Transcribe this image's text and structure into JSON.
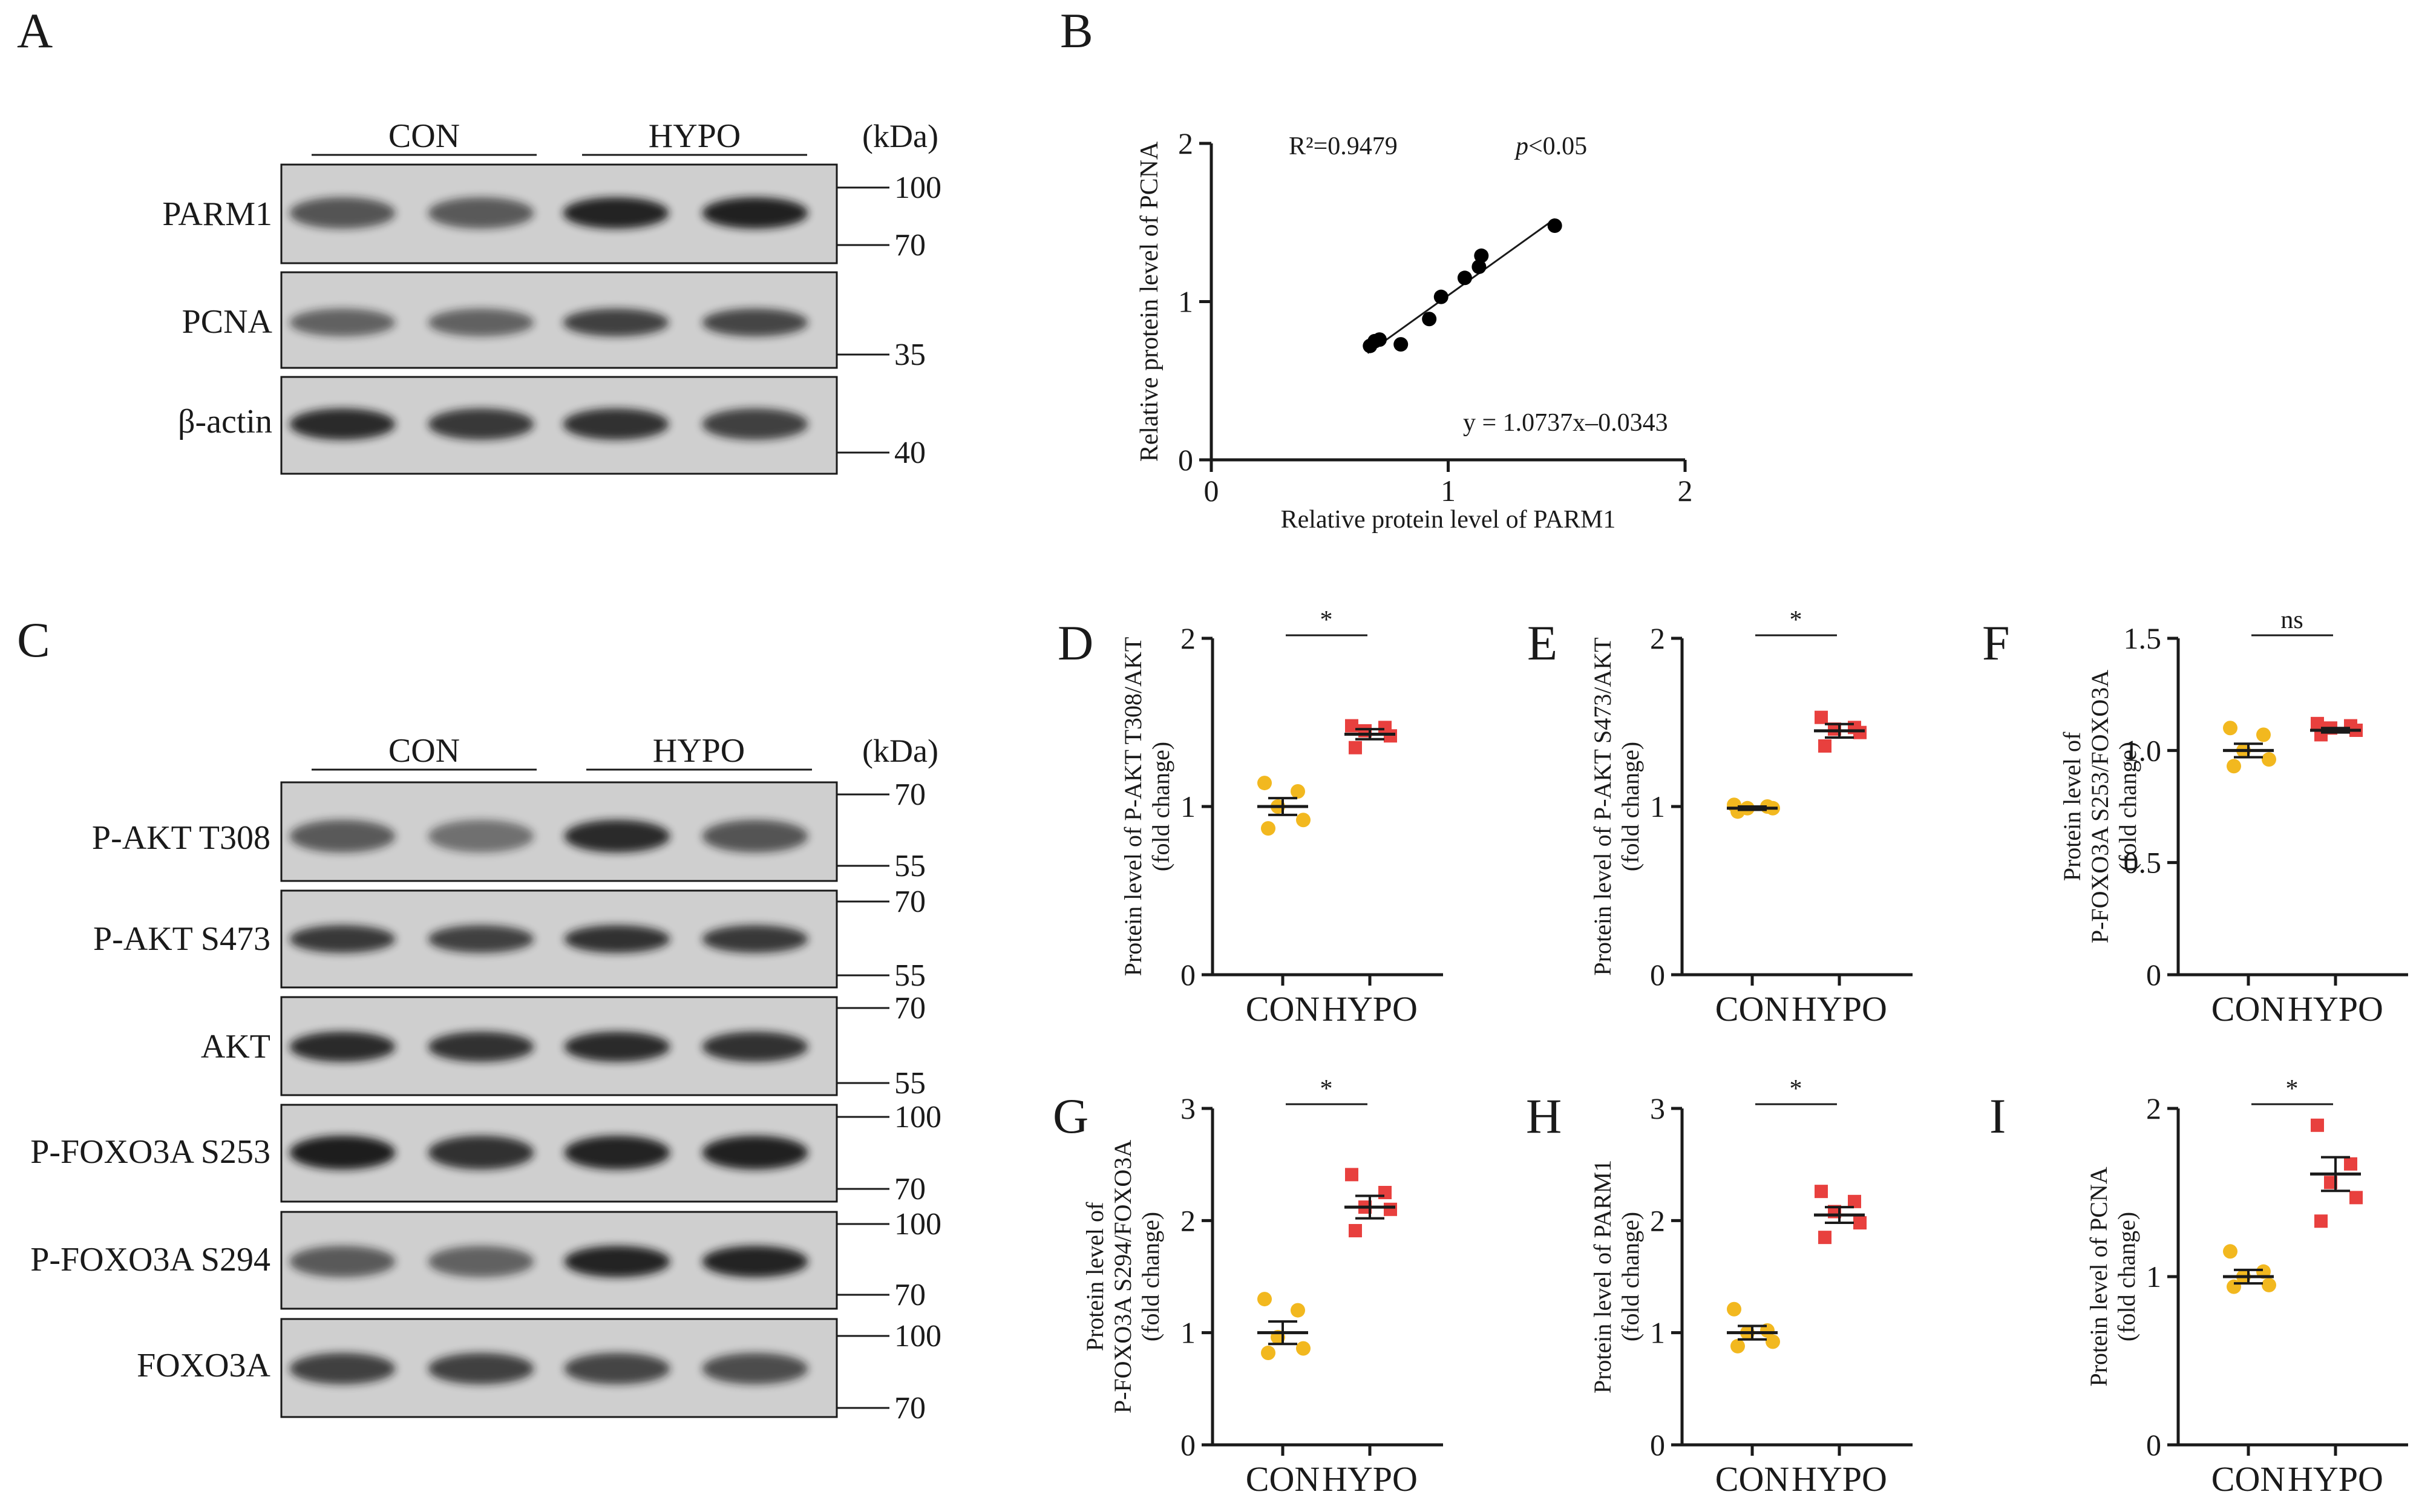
{
  "panel_letters": {
    "A": "A",
    "B": "B",
    "C": "C",
    "D": "D",
    "E": "E",
    "F": "F",
    "G": "G",
    "H": "H",
    "I": "I"
  },
  "blot_A": {
    "groups": [
      "CON",
      "HYPO"
    ],
    "unit": "(kDa)",
    "rows": [
      {
        "label": "PARM1",
        "markers": [
          "100",
          "70"
        ],
        "bands": [
          0.55,
          0.5,
          0.9,
          0.92
        ]
      },
      {
        "label": "PCNA",
        "markers": [
          "35"
        ],
        "bands": [
          0.45,
          0.45,
          0.7,
          0.65
        ]
      },
      {
        "label": "β-actin",
        "markers": [
          "40"
        ],
        "bands": [
          0.85,
          0.75,
          0.8,
          0.7
        ]
      }
    ]
  },
  "blot_C": {
    "groups": [
      "CON",
      "HYPO"
    ],
    "unit": "(kDa)",
    "rows": [
      {
        "label": "P-AKT T308",
        "markers": [
          "70",
          "55"
        ],
        "bands": [
          0.5,
          0.35,
          0.85,
          0.55
        ]
      },
      {
        "label": "P-AKT S473",
        "markers": [
          "70",
          "55"
        ],
        "bands": [
          0.75,
          0.7,
          0.8,
          0.75
        ]
      },
      {
        "label": "AKT",
        "markers": [
          "70",
          "55"
        ],
        "bands": [
          0.85,
          0.8,
          0.85,
          0.8
        ]
      },
      {
        "label": "P-FOXO3A S253",
        "markers": [
          "100",
          "70"
        ],
        "bands": [
          0.95,
          0.8,
          0.9,
          0.92
        ]
      },
      {
        "label": "P-FOXO3A S294",
        "markers": [
          "100",
          "70"
        ],
        "bands": [
          0.5,
          0.45,
          0.9,
          0.9
        ]
      },
      {
        "label": "FOXO3A",
        "markers": [
          "100",
          "70"
        ],
        "bands": [
          0.7,
          0.7,
          0.65,
          0.6
        ]
      }
    ]
  },
  "colors": {
    "con": "#f2b81f",
    "hypo": "#e8403e",
    "axis": "#1a1a1a"
  },
  "chart_data": [
    {
      "id": "B",
      "type": "scatter",
      "xlabel": "Relative protein level of PARM1",
      "ylabel": "Relative protein level of PCNA",
      "xlim": [
        0,
        2
      ],
      "ylim": [
        0,
        2
      ],
      "xticks": [
        "0",
        "1",
        "2"
      ],
      "yticks": [
        "0",
        "1",
        "2"
      ],
      "points": [
        [
          0.67,
          0.72
        ],
        [
          0.69,
          0.75
        ],
        [
          0.71,
          0.76
        ],
        [
          0.8,
          0.73
        ],
        [
          0.92,
          0.89
        ],
        [
          0.97,
          1.03
        ],
        [
          1.07,
          1.15
        ],
        [
          1.13,
          1.22
        ],
        [
          1.14,
          1.29
        ],
        [
          1.45,
          1.48
        ]
      ],
      "fit": {
        "slope": 1.0737,
        "intercept": -0.0343,
        "x_from": 0.66,
        "x_to": 1.45
      },
      "annotations": {
        "r2": "R²=0.9479",
        "p_label": "p",
        "p_value": "<0.05",
        "equation": "y = 1.0737x–0.0343"
      }
    },
    {
      "id": "D",
      "type": "scatter",
      "ylabel_lines": [
        "Protein level of P-AKT T308/AKT",
        "(fold change)"
      ],
      "ylim": [
        0,
        2
      ],
      "yticks": [
        "0",
        "1",
        "2"
      ],
      "categories": [
        "CON",
        "HYPO"
      ],
      "significance": "*",
      "series": [
        {
          "name": "CON",
          "values": [
            1.14,
            1.09,
            1.0,
            0.92,
            0.87
          ],
          "mean": 1.0,
          "sem": 0.05
        },
        {
          "name": "HYPO",
          "values": [
            1.48,
            1.47,
            1.45,
            1.42,
            1.35
          ],
          "mean": 1.43,
          "sem": 0.03
        }
      ]
    },
    {
      "id": "E",
      "type": "scatter",
      "ylabel_lines": [
        "Protein level of P-AKT S473/AKT",
        "(fold change)"
      ],
      "ylim": [
        0,
        2
      ],
      "yticks": [
        "0",
        "1",
        "2"
      ],
      "categories": [
        "CON",
        "HYPO"
      ],
      "significance": "*",
      "series": [
        {
          "name": "CON",
          "values": [
            1.01,
            1.0,
            0.99,
            0.99,
            0.97
          ],
          "mean": 0.99,
          "sem": 0.01
        },
        {
          "name": "HYPO",
          "values": [
            1.53,
            1.47,
            1.46,
            1.44,
            1.36
          ],
          "mean": 1.45,
          "sem": 0.04
        }
      ]
    },
    {
      "id": "F",
      "type": "scatter",
      "ylabel_lines": [
        "Protein level of",
        "P-FOXO3A S253/FOXO3A",
        "(fold change)"
      ],
      "ylim": [
        0,
        1.5
      ],
      "yticks": [
        "0",
        "0.5",
        "1.0",
        "1.5"
      ],
      "categories": [
        "CON",
        "HYPO"
      ],
      "significance": "ns",
      "series": [
        {
          "name": "CON",
          "values": [
            1.1,
            1.07,
            1.0,
            0.96,
            0.93
          ],
          "mean": 1.0,
          "sem": 0.03
        },
        {
          "name": "HYPO",
          "values": [
            1.12,
            1.11,
            1.1,
            1.09,
            1.07
          ],
          "mean": 1.09,
          "sem": 0.01
        }
      ]
    },
    {
      "id": "G",
      "type": "scatter",
      "ylabel_lines": [
        "Protein level of",
        "P-FOXO3A S294/FOXO3A",
        "(fold change)"
      ],
      "ylim": [
        0,
        3
      ],
      "yticks": [
        "0",
        "1",
        "2",
        "3"
      ],
      "categories": [
        "CON",
        "HYPO"
      ],
      "significance": "*",
      "series": [
        {
          "name": "CON",
          "values": [
            1.3,
            1.2,
            0.96,
            0.86,
            0.82
          ],
          "mean": 1.0,
          "sem": 0.1
        },
        {
          "name": "HYPO",
          "values": [
            2.41,
            2.25,
            2.12,
            2.1,
            1.91
          ],
          "mean": 2.12,
          "sem": 0.1
        }
      ]
    },
    {
      "id": "H",
      "type": "scatter",
      "ylabel_lines": [
        "Protein level of PARM1",
        "(fold change)"
      ],
      "ylim": [
        0,
        3
      ],
      "yticks": [
        "0",
        "1",
        "2",
        "3"
      ],
      "categories": [
        "CON",
        "HYPO"
      ],
      "significance": "*",
      "series": [
        {
          "name": "CON",
          "values": [
            1.21,
            1.02,
            1.0,
            0.92,
            0.88
          ],
          "mean": 1.0,
          "sem": 0.06
        },
        {
          "name": "HYPO",
          "values": [
            2.26,
            2.17,
            2.08,
            1.98,
            1.85
          ],
          "mean": 2.05,
          "sem": 0.07
        }
      ]
    },
    {
      "id": "I",
      "type": "scatter",
      "ylabel_lines": [
        "Protein level of PCNA",
        "(fold change)"
      ],
      "ylim": [
        0,
        2
      ],
      "yticks": [
        "0",
        "1",
        "2"
      ],
      "categories": [
        "CON",
        "HYPO"
      ],
      "significance": "*",
      "series": [
        {
          "name": "CON",
          "values": [
            1.15,
            1.03,
            1.0,
            0.95,
            0.94
          ],
          "mean": 1.0,
          "sem": 0.04
        },
        {
          "name": "HYPO",
          "values": [
            1.9,
            1.67,
            1.56,
            1.47,
            1.33
          ],
          "mean": 1.61,
          "sem": 0.1
        }
      ]
    }
  ]
}
